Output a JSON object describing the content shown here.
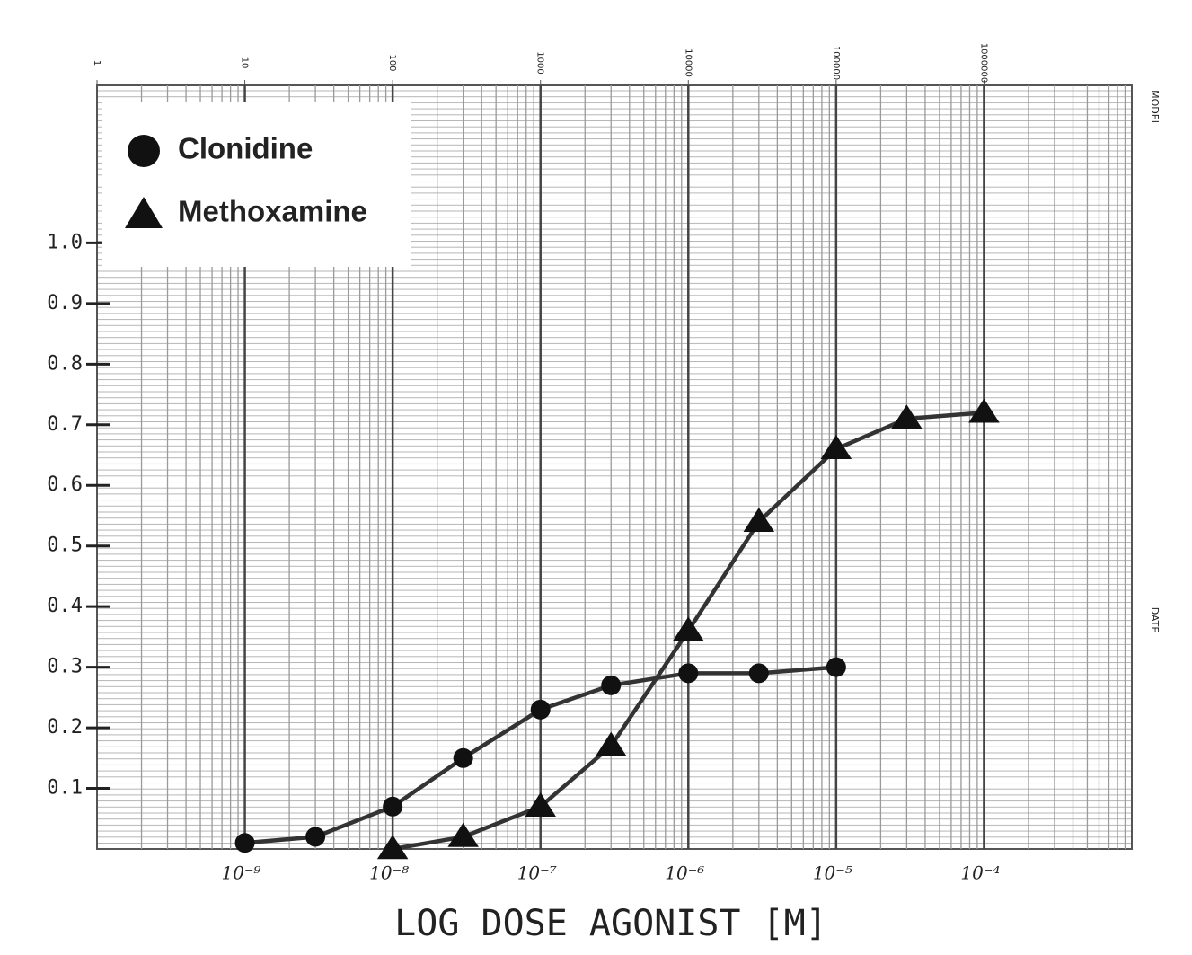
{
  "chart_data": {
    "type": "line",
    "xlabel": "LOG DOSE AGONIST [M]",
    "xscale": "log",
    "xlim": [
      1e-10,
      0.001
    ],
    "xticks": [
      {
        "value": 1e-09,
        "label": "10⁻⁹"
      },
      {
        "value": 1e-08,
        "label": "10⁻⁸"
      },
      {
        "value": 1e-07,
        "label": "10⁻⁷"
      },
      {
        "value": 1e-06,
        "label": "10⁻⁶"
      },
      {
        "value": 1e-05,
        "label": "10⁻⁵"
      },
      {
        "value": 0.0001,
        "label": "10⁻⁴"
      }
    ],
    "x2ticks": [
      {
        "value": 1e-10,
        "label": "1"
      },
      {
        "value": 1e-09,
        "label": "10"
      },
      {
        "value": 1e-08,
        "label": "100"
      },
      {
        "value": 1e-07,
        "label": "1000"
      },
      {
        "value": 1e-06,
        "label": "10000"
      },
      {
        "value": 1e-05,
        "label": "100000"
      },
      {
        "value": 0.0001,
        "label": "1000000"
      }
    ],
    "paper_labels": [
      "MODEL",
      "DATE"
    ],
    "ylim": [
      0,
      1.26
    ],
    "yticks": [
      0.1,
      0.2,
      0.3,
      0.4,
      0.5,
      0.6,
      0.7,
      0.8,
      0.9,
      {
        "value": 1.0,
        "label": "1.0"
      }
    ],
    "grid": true,
    "legend": "upper left",
    "series": [
      {
        "name": "Clonidine",
        "color": "#111111",
        "marker": "circle",
        "x": [
          1e-09,
          3e-09,
          1e-08,
          3e-08,
          1e-07,
          3e-07,
          1e-06,
          3e-06,
          1e-05
        ],
        "values": [
          0.01,
          0.02,
          0.07,
          0.15,
          0.23,
          0.27,
          0.29,
          0.29,
          0.3
        ]
      },
      {
        "name": "Methoxamine",
        "color": "#111111",
        "marker": "triangle",
        "x": [
          1e-08,
          3e-08,
          1e-07,
          3e-07,
          1e-06,
          3e-06,
          1e-05,
          3e-05,
          0.0001
        ],
        "values": [
          0.0,
          0.02,
          0.07,
          0.17,
          0.36,
          0.54,
          0.66,
          0.71,
          0.72
        ]
      }
    ]
  }
}
